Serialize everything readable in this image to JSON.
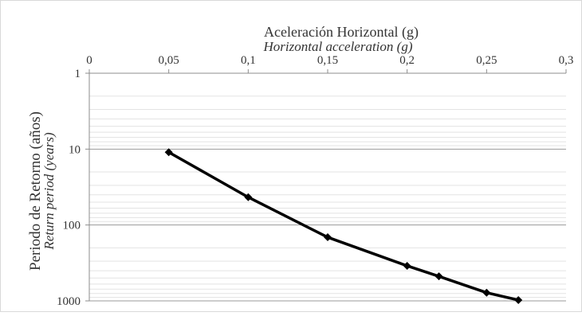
{
  "chart_data": {
    "type": "line",
    "x_axis": {
      "title": "Aceleración Horizontal (g)",
      "subtitle": "Horizontal acceleration (g)",
      "position": "top",
      "range": [
        0,
        0.3
      ],
      "ticks": [
        0,
        0.05,
        0.1,
        0.15,
        0.2,
        0.25,
        0.3
      ],
      "tick_labels": [
        "0",
        "0,05",
        "0,1",
        "0,15",
        "0,2",
        "0,25",
        "0,3"
      ]
    },
    "y_axis": {
      "title": "Periodo de Retorno (años)",
      "subtitle": "Return period (years)",
      "scale": "log",
      "inverted": true,
      "range": [
        1,
        1000
      ],
      "ticks": [
        1,
        10,
        100,
        1000
      ],
      "tick_labels": [
        "1",
        "10",
        "100",
        "1000"
      ]
    },
    "grid": true,
    "series": [
      {
        "color": "#000000",
        "marker": "diamond",
        "points": [
          {
            "x": 0.05,
            "y": 11
          },
          {
            "x": 0.1,
            "y": 43
          },
          {
            "x": 0.15,
            "y": 145
          },
          {
            "x": 0.2,
            "y": 345
          },
          {
            "x": 0.22,
            "y": 475
          },
          {
            "x": 0.25,
            "y": 780
          },
          {
            "x": 0.27,
            "y": 975
          }
        ]
      }
    ]
  }
}
